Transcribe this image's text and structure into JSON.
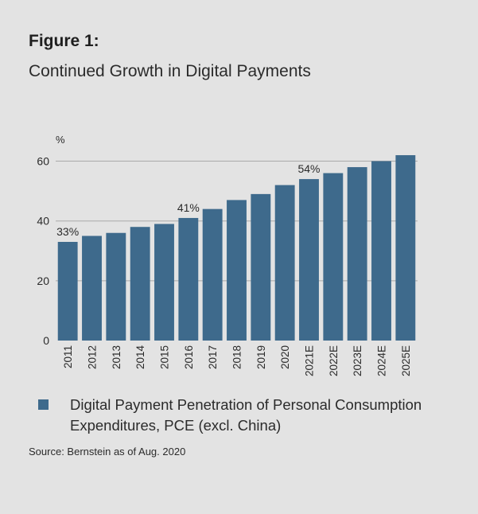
{
  "figure": {
    "label": "Figure 1:",
    "title": "Continued Growth in Digital Payments"
  },
  "source": "Source: Bernstein as of Aug. 2020",
  "colors": {
    "background": "#e3e3e3",
    "bar": "#3e6a8c",
    "gridline": "#a9a9a9",
    "text": "#2b2b2b"
  },
  "chart_data": {
    "type": "bar",
    "categories": [
      "2011",
      "2012",
      "2013",
      "2014",
      "2015",
      "2016",
      "2017",
      "2018",
      "2019",
      "2020",
      "2021E",
      "2022E",
      "2023E",
      "2024E",
      "2025E"
    ],
    "series": [
      {
        "name": "Digital Payment Penetration of Personal Consumption Expenditures, PCE (excl. China)",
        "values": [
          33,
          35,
          36,
          38,
          39,
          41,
          44,
          47,
          49,
          52,
          54,
          56,
          58,
          60,
          62
        ]
      }
    ],
    "ylabel": "%",
    "ylim": [
      0,
      66
    ],
    "yticks": [
      0,
      20,
      40,
      60
    ],
    "grid": true,
    "legend_position": "bottom",
    "data_labels": [
      {
        "category": "2011",
        "text": "33%"
      },
      {
        "category": "2016",
        "text": "41%"
      },
      {
        "category": "2021E",
        "text": "54%"
      }
    ]
  }
}
